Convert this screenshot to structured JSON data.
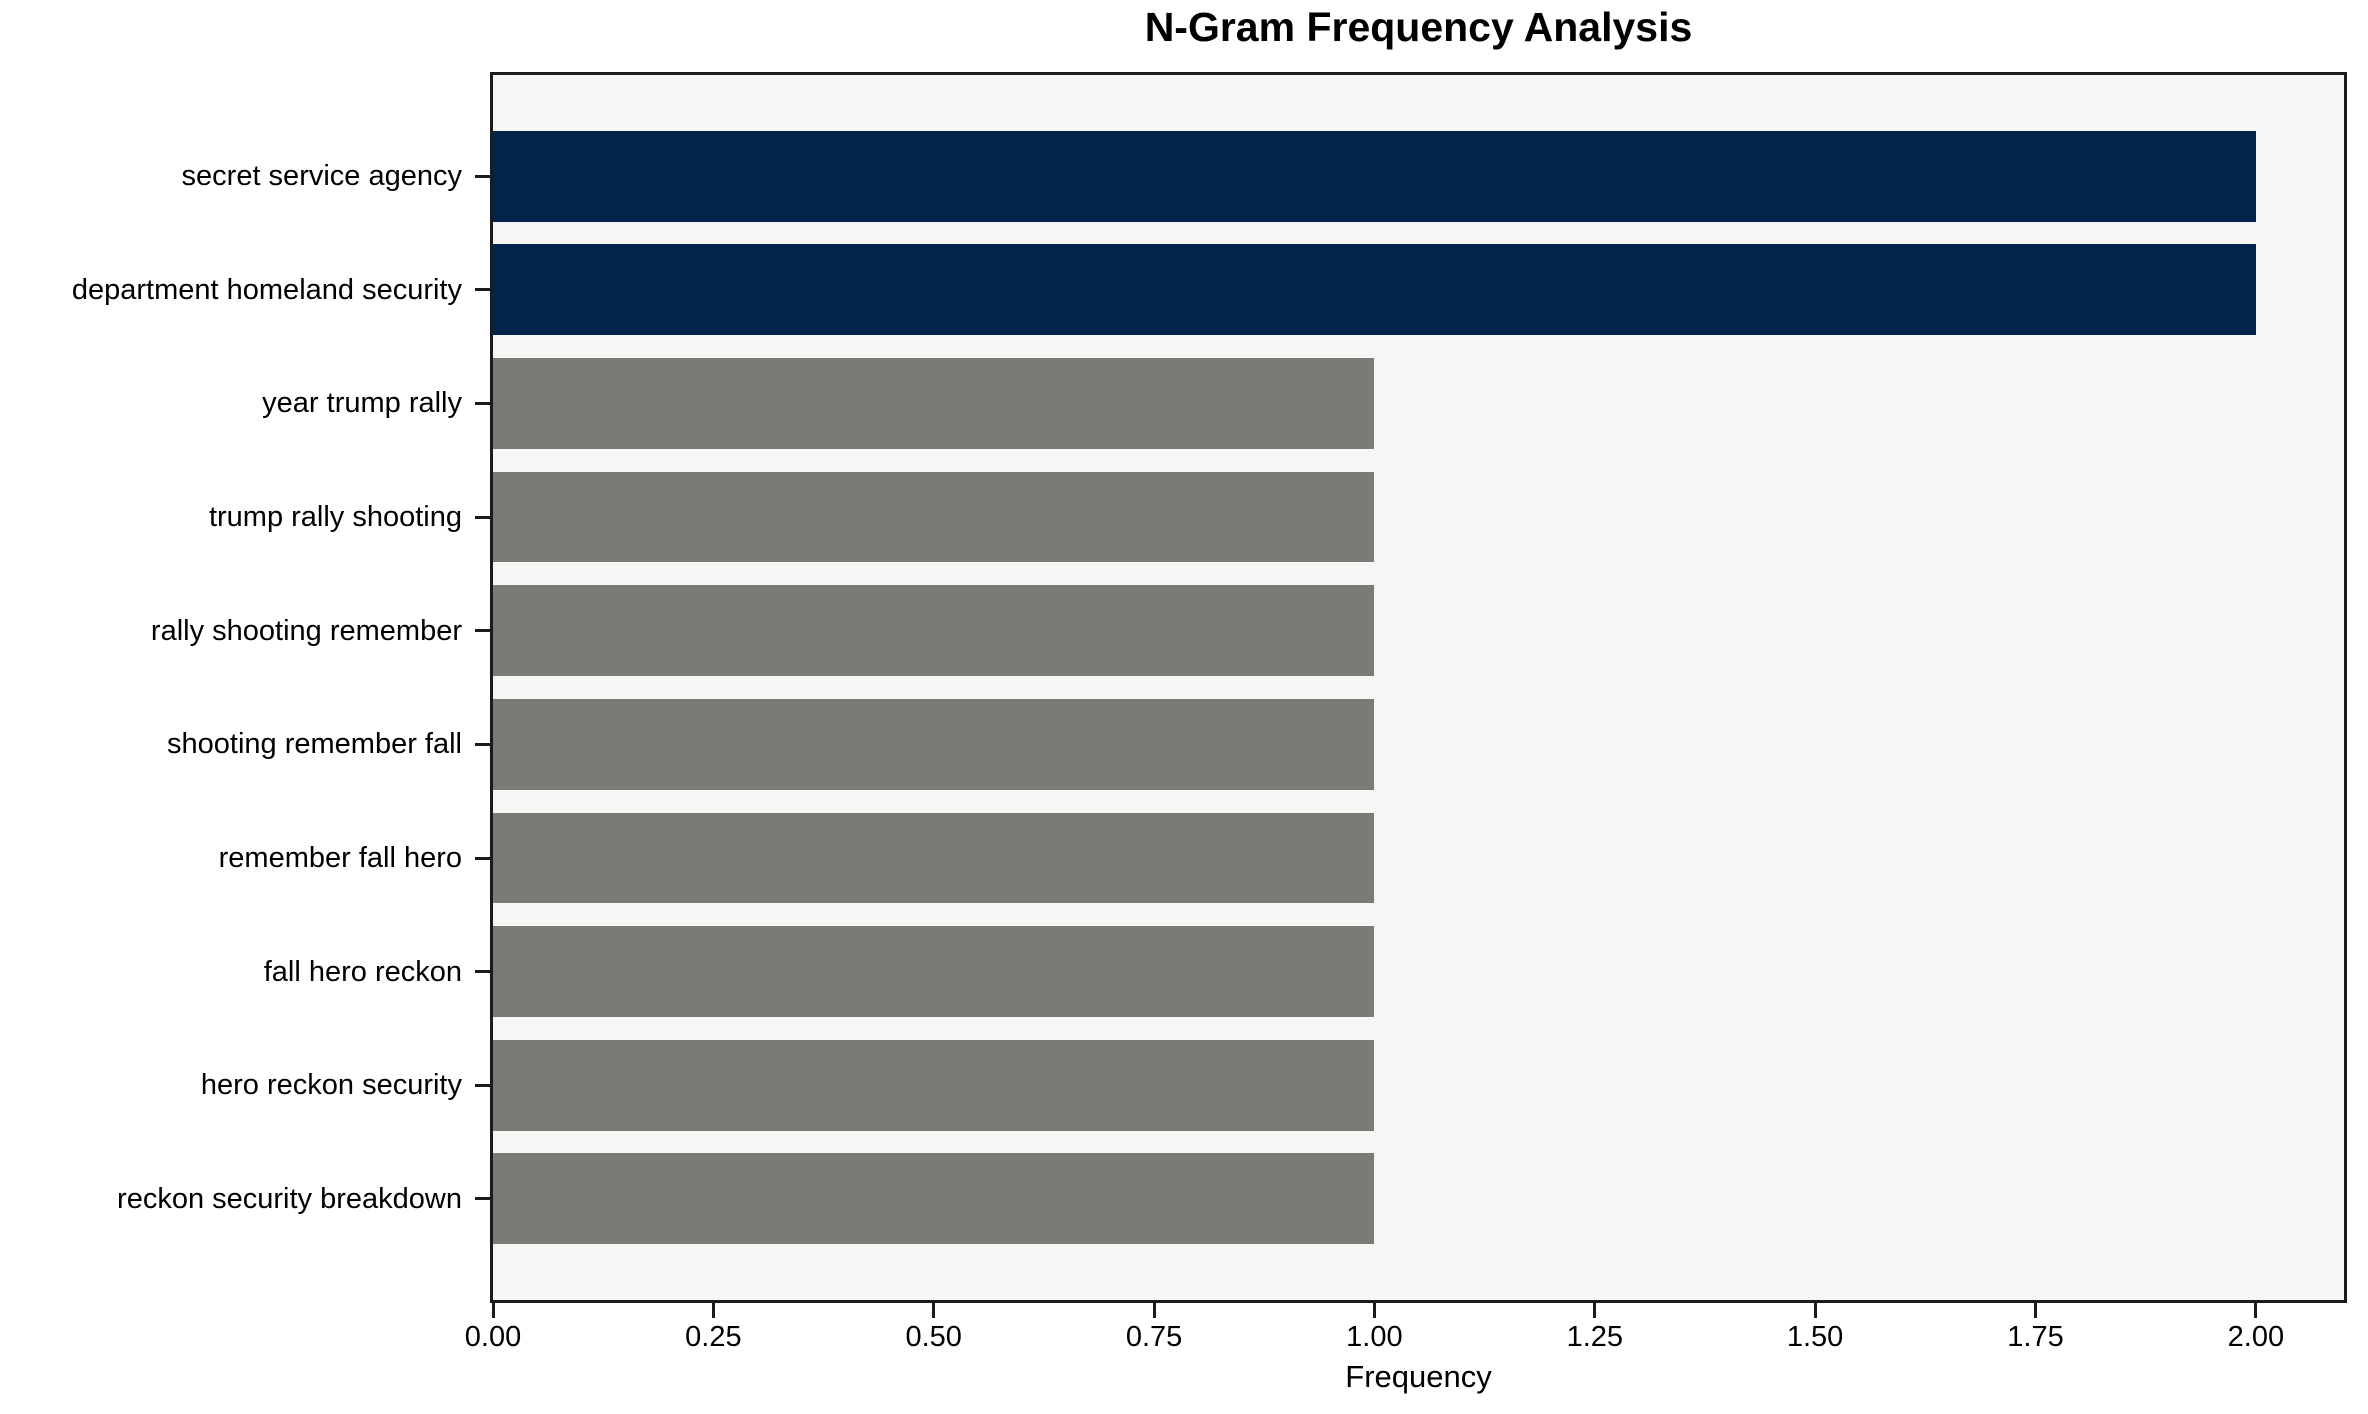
{
  "chart_data": {
    "type": "bar",
    "orientation": "horizontal",
    "title": "N-Gram Frequency Analysis",
    "xlabel": "Frequency",
    "ylabel": "",
    "categories": [
      "secret service agency",
      "department homeland security",
      "year trump rally",
      "trump rally shooting",
      "rally shooting remember",
      "shooting remember fall",
      "remember fall hero",
      "fall hero reckon",
      "hero reckon security",
      "reckon security breakdown"
    ],
    "values": [
      2,
      2,
      1,
      1,
      1,
      1,
      1,
      1,
      1,
      1
    ],
    "bar_colors": [
      "#02234c",
      "#02234c",
      "#7a7a77",
      "#7a7a77",
      "#7a7a77",
      "#7a7a77",
      "#7a7a77",
      "#7a7a77",
      "#7a7a77",
      "#7a7a77"
    ],
    "xlim": [
      0,
      2.1
    ],
    "x_ticks": [
      0.0,
      0.25,
      0.5,
      0.75,
      1.0,
      1.25,
      1.5,
      1.75,
      2.0
    ],
    "x_tick_labels": [
      "0.00",
      "0.25",
      "0.50",
      "0.75",
      "1.00",
      "1.25",
      "1.50",
      "1.75",
      "2.00"
    ],
    "grid": false,
    "legend": null,
    "plot_background": "#f7f6f5",
    "figure_background": "#ffffff",
    "spine_color": "#1b1b1b"
  }
}
